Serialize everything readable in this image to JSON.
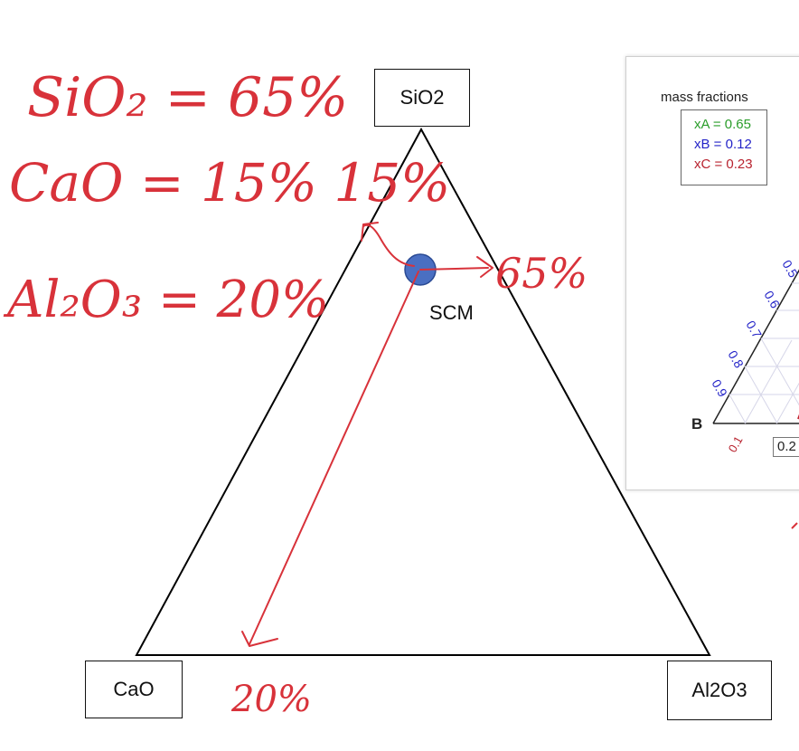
{
  "vertices": {
    "top": "SiO2",
    "left": "CaO",
    "right": "Al2O3"
  },
  "point_label": "SCM",
  "handwritten_notes": {
    "line1": "SiO₂ = 65%",
    "line2": "CaO = 15% 15%",
    "line3": "Al₂O₃ = 20%",
    "arrow_right": "65%",
    "arrow_down": "20%"
  },
  "inset": {
    "title": "mass fractions",
    "xa": "xA = 0.65",
    "xb": "xB = 0.12",
    "xc": "xC = 0.23",
    "vertex_label": "B",
    "ticks": [
      "0.5",
      "0.6",
      "0.7",
      "0.8",
      "0.9",
      "0.1"
    ],
    "field_value": "0.2"
  },
  "colors": {
    "ink": "#d8323a",
    "point": "#4a6fc2",
    "green": "#2a9d2a",
    "blue": "#2424c8",
    "red": "#b8232f"
  }
}
